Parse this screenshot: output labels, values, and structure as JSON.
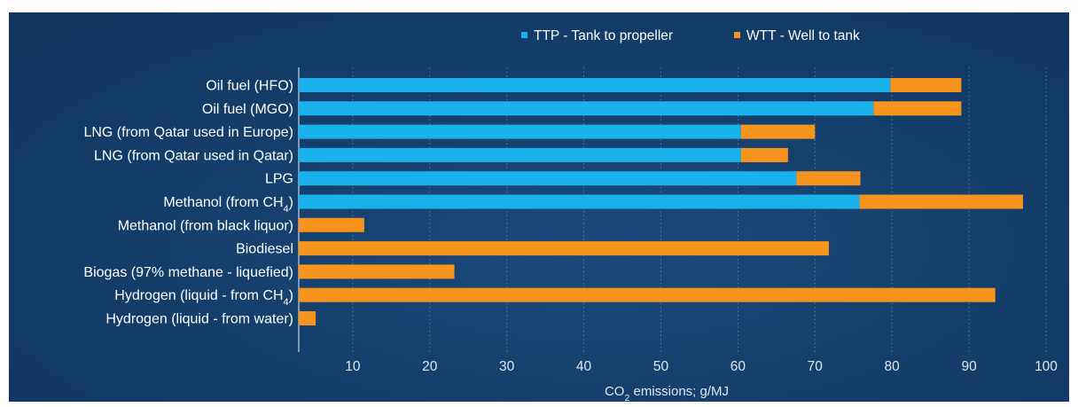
{
  "chart_data": {
    "type": "bar",
    "orientation": "horizontal",
    "stacked": true,
    "categories": [
      "Oil fuel (HFO)",
      "Oil fuel (MGO)",
      "LNG (from Qatar used in Europe)",
      "LNG (from Qatar used in Qatar)",
      "LPG",
      "Methanol (from CH4)",
      "Methanol (from black liquor)",
      "Biodiesel",
      "Biogas (97% methane - liquefied)",
      "Hydrogen (liquid - from CH4)",
      "Hydrogen (liquid - from water)"
    ],
    "series": [
      {
        "name": "TTP - Tank to propeller",
        "color": "#1ab2ec",
        "values": [
          76.8,
          74.6,
          57.4,
          57.4,
          64.6,
          72.8,
          0,
          0,
          0,
          0,
          0
        ]
      },
      {
        "name": "WTT - Well to tank",
        "color": "#f7941d",
        "values": [
          9.2,
          11.4,
          9.6,
          6.1,
          8.3,
          21.2,
          8.5,
          68.8,
          20.2,
          90.4,
          2.2
        ]
      }
    ],
    "xlabel": "CO2 emissions; g/MJ",
    "xticks": [
      10,
      20,
      30,
      40,
      50,
      60,
      70,
      80,
      90,
      100
    ],
    "xlim": [
      3,
      100
    ],
    "grid": "vertical-dotted",
    "legend": "top-right"
  }
}
